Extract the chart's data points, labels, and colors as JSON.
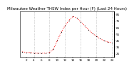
{
  "title": "Milwaukee Weather THSW Index per Hour (F) (Last 24 Hours)",
  "hours": [
    1,
    2,
    3,
    4,
    5,
    6,
    7,
    8,
    9,
    10,
    11,
    12,
    13,
    14,
    15,
    16,
    17,
    18,
    19,
    20,
    21,
    22,
    23,
    24
  ],
  "values": [
    28,
    27,
    27,
    26,
    26,
    26,
    26,
    27,
    32,
    45,
    58,
    68,
    76,
    82,
    80,
    74,
    68,
    62,
    56,
    52,
    48,
    45,
    43,
    42
  ],
  "line_color": "#ff0000",
  "bg_color": "#ffffff",
  "grid_color": "#aaaaaa",
  "ylim": [
    20,
    90
  ],
  "yticks": [
    25,
    35,
    45,
    55,
    65,
    75,
    85
  ],
  "xticks": [
    2,
    4,
    6,
    8,
    10,
    12,
    14,
    16,
    18,
    20,
    22,
    24
  ],
  "title_fontsize": 4.0,
  "tick_fontsize": 3.0,
  "vgrid_positions": [
    4,
    8,
    12,
    16,
    20,
    24
  ]
}
